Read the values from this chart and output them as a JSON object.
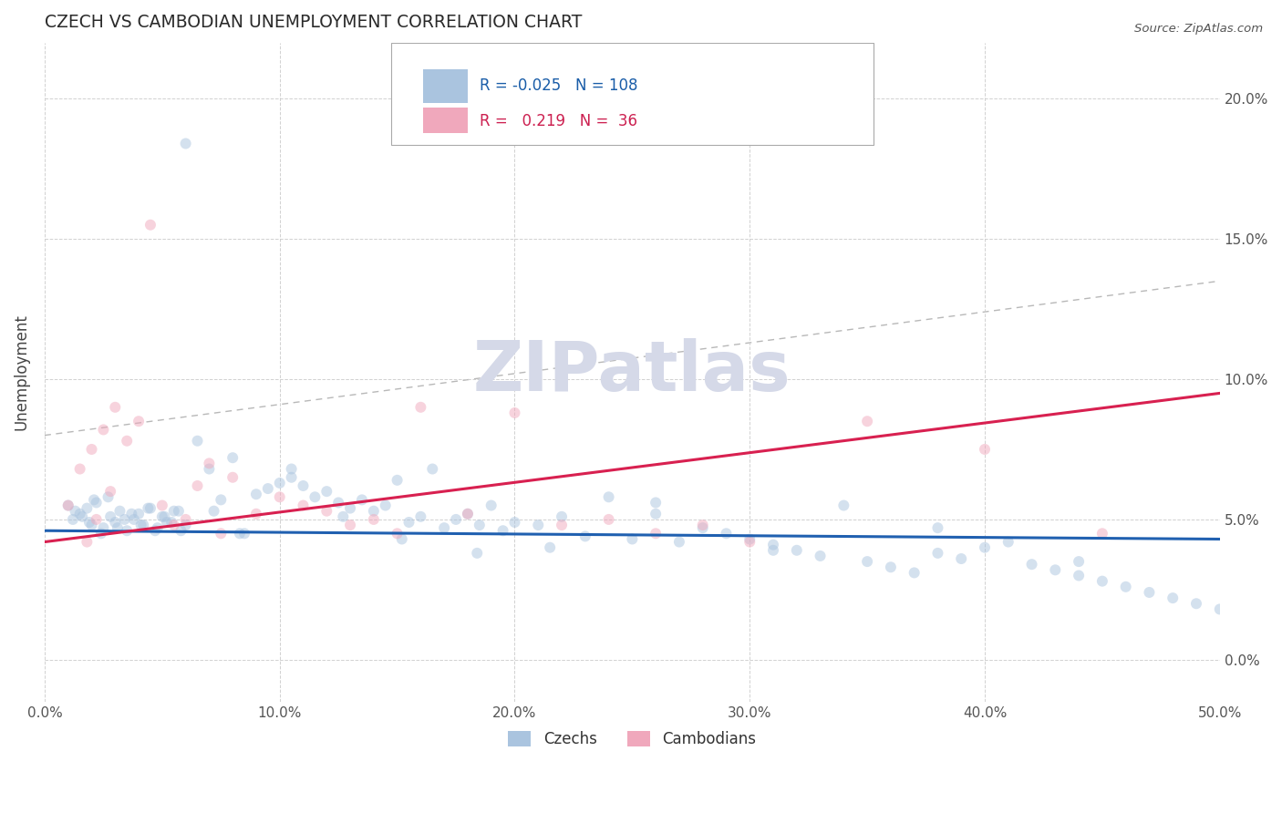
{
  "title": "CZECH VS CAMBODIAN UNEMPLOYMENT CORRELATION CHART",
  "source_text": "Source: ZipAtlas.com",
  "ylabel": "Unemployment",
  "xlim": [
    0.0,
    50.0
  ],
  "ylim": [
    -1.5,
    22.0
  ],
  "x_ticks": [
    0.0,
    10.0,
    20.0,
    30.0,
    40.0,
    50.0
  ],
  "x_tick_labels": [
    "0.0%",
    "10.0%",
    "20.0%",
    "30.0%",
    "40.0%",
    "50.0%"
  ],
  "y_ticks": [
    0.0,
    5.0,
    10.0,
    15.0,
    20.0
  ],
  "y_tick_labels": [
    "0.0%",
    "5.0%",
    "10.0%",
    "15.0%",
    "20.0%"
  ],
  "czech_color": "#aac4df",
  "cambodian_color": "#f0a8bc",
  "czech_line_color": "#2060b0",
  "cambodian_line_color": "#d82050",
  "grid_color": "#cccccc",
  "watermark_color": "#d5d9e8",
  "legend_r_czech": "-0.025",
  "legend_n_czech": "108",
  "legend_r_cambodian": "0.219",
  "legend_n_cambodian": "36",
  "czech_x": [
    1.2,
    1.5,
    1.8,
    2.0,
    2.2,
    2.5,
    2.8,
    3.0,
    3.2,
    3.5,
    3.8,
    4.0,
    4.2,
    4.5,
    4.8,
    5.0,
    5.2,
    5.5,
    5.8,
    6.0,
    1.0,
    1.3,
    1.6,
    1.9,
    2.1,
    2.4,
    2.7,
    3.1,
    3.4,
    3.7,
    4.1,
    4.4,
    4.7,
    5.1,
    5.4,
    5.7,
    6.5,
    7.0,
    7.5,
    8.0,
    8.5,
    9.0,
    9.5,
    10.0,
    10.5,
    11.0,
    11.5,
    12.0,
    12.5,
    13.0,
    13.5,
    14.0,
    14.5,
    15.0,
    15.5,
    16.0,
    16.5,
    17.0,
    17.5,
    18.0,
    18.5,
    19.0,
    19.5,
    20.0,
    21.0,
    22.0,
    23.0,
    24.0,
    25.0,
    26.0,
    27.0,
    28.0,
    29.0,
    30.0,
    31.0,
    32.0,
    33.0,
    34.0,
    35.0,
    36.0,
    37.0,
    38.0,
    39.0,
    40.0,
    41.0,
    42.0,
    43.0,
    44.0,
    45.0,
    46.0,
    47.0,
    48.0,
    49.0,
    50.0,
    6.0,
    7.2,
    8.3,
    10.5,
    12.7,
    15.2,
    18.4,
    21.5,
    26.0,
    31.0,
    38.0,
    44.0
  ],
  "czech_y": [
    5.0,
    5.2,
    5.4,
    4.8,
    5.6,
    4.7,
    5.1,
    4.9,
    5.3,
    4.6,
    5.0,
    5.2,
    4.8,
    5.4,
    4.7,
    5.1,
    4.9,
    5.3,
    4.6,
    4.8,
    5.5,
    5.3,
    5.1,
    4.9,
    5.7,
    4.5,
    5.8,
    4.7,
    5.0,
    5.2,
    4.8,
    5.4,
    4.6,
    5.1,
    4.9,
    5.3,
    7.8,
    6.8,
    5.7,
    7.2,
    4.5,
    5.9,
    6.1,
    6.3,
    6.5,
    6.2,
    5.8,
    6.0,
    5.6,
    5.4,
    5.7,
    5.3,
    5.5,
    6.4,
    4.9,
    5.1,
    6.8,
    4.7,
    5.0,
    5.2,
    4.8,
    5.5,
    4.6,
    4.9,
    4.8,
    5.1,
    4.4,
    5.8,
    4.3,
    5.6,
    4.2,
    4.7,
    4.5,
    4.3,
    4.1,
    3.9,
    3.7,
    5.5,
    3.5,
    3.3,
    3.1,
    3.8,
    3.6,
    4.0,
    4.2,
    3.4,
    3.2,
    3.0,
    2.8,
    2.6,
    2.4,
    2.2,
    2.0,
    1.8,
    18.4,
    5.3,
    4.5,
    6.8,
    5.1,
    4.3,
    3.8,
    4.0,
    5.2,
    3.9,
    4.7,
    3.5
  ],
  "cambodian_x": [
    1.0,
    1.5,
    1.8,
    2.0,
    2.2,
    2.5,
    2.8,
    3.0,
    3.5,
    4.0,
    4.5,
    5.0,
    5.5,
    6.0,
    6.5,
    7.0,
    7.5,
    8.0,
    9.0,
    10.0,
    11.0,
    12.0,
    13.0,
    14.0,
    15.0,
    16.0,
    18.0,
    20.0,
    22.0,
    24.0,
    26.0,
    28.0,
    30.0,
    35.0,
    40.0,
    45.0
  ],
  "cambodian_y": [
    5.5,
    6.8,
    4.2,
    7.5,
    5.0,
    8.2,
    6.0,
    9.0,
    7.8,
    8.5,
    15.5,
    5.5,
    4.8,
    5.0,
    6.2,
    7.0,
    4.5,
    6.5,
    5.2,
    5.8,
    5.5,
    5.3,
    4.8,
    5.0,
    4.5,
    9.0,
    5.2,
    8.8,
    4.8,
    5.0,
    4.5,
    4.8,
    4.2,
    8.5,
    7.5,
    4.5
  ],
  "czech_trend": [
    4.6,
    4.3
  ],
  "cambodian_trend": [
    4.2,
    9.5
  ],
  "gray_dash": [
    8.0,
    13.5
  ],
  "marker_size": 75,
  "marker_alpha": 0.5,
  "line_width": 2.2
}
